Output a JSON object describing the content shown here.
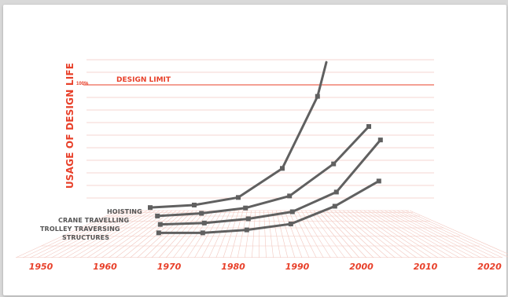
{
  "chart_data": {
    "type": "line",
    "title": "",
    "ylabel": "USAGE OF DESIGN LIFE",
    "xlabel": "",
    "x_ticks": [
      "1950",
      "1960",
      "1970",
      "1980",
      "1990",
      "2000",
      "2010",
      "2020"
    ],
    "xlim": [
      1950,
      2020
    ],
    "ylim": [
      0,
      120
    ],
    "y_tick_label": "100%",
    "design_limit": {
      "label": "DESIGN LIMIT",
      "value": 100
    },
    "grid": true,
    "series": [
      {
        "name": "HOISTING",
        "points": [
          [
            1960,
            3
          ],
          [
            1970,
            5
          ],
          [
            1980,
            11
          ],
          [
            1990,
            34
          ],
          [
            1998,
            91
          ],
          [
            2000,
            118
          ]
        ]
      },
      {
        "name": "CRANE TRAVELLING",
        "points": [
          [
            1962,
            3
          ],
          [
            1972,
            5
          ],
          [
            1982,
            9
          ],
          [
            1992,
            18
          ],
          [
            2002,
            42
          ],
          [
            2010,
            70
          ]
        ]
      },
      {
        "name": "TROLLEY TRAVERSING",
        "points": [
          [
            1963,
            3
          ],
          [
            1973,
            4
          ],
          [
            1983,
            7
          ],
          [
            1993,
            12
          ],
          [
            2003,
            26
          ],
          [
            2013,
            63
          ]
        ]
      },
      {
        "name": "STRUCTURES",
        "points": [
          [
            1963,
            3
          ],
          [
            1973,
            3
          ],
          [
            1983,
            5
          ],
          [
            1993,
            9
          ],
          [
            2003,
            21
          ],
          [
            2013,
            38
          ]
        ]
      }
    ],
    "colors": {
      "accent": "#e8402a",
      "series_line": "#606060",
      "grid": "#f2c8c0"
    }
  }
}
